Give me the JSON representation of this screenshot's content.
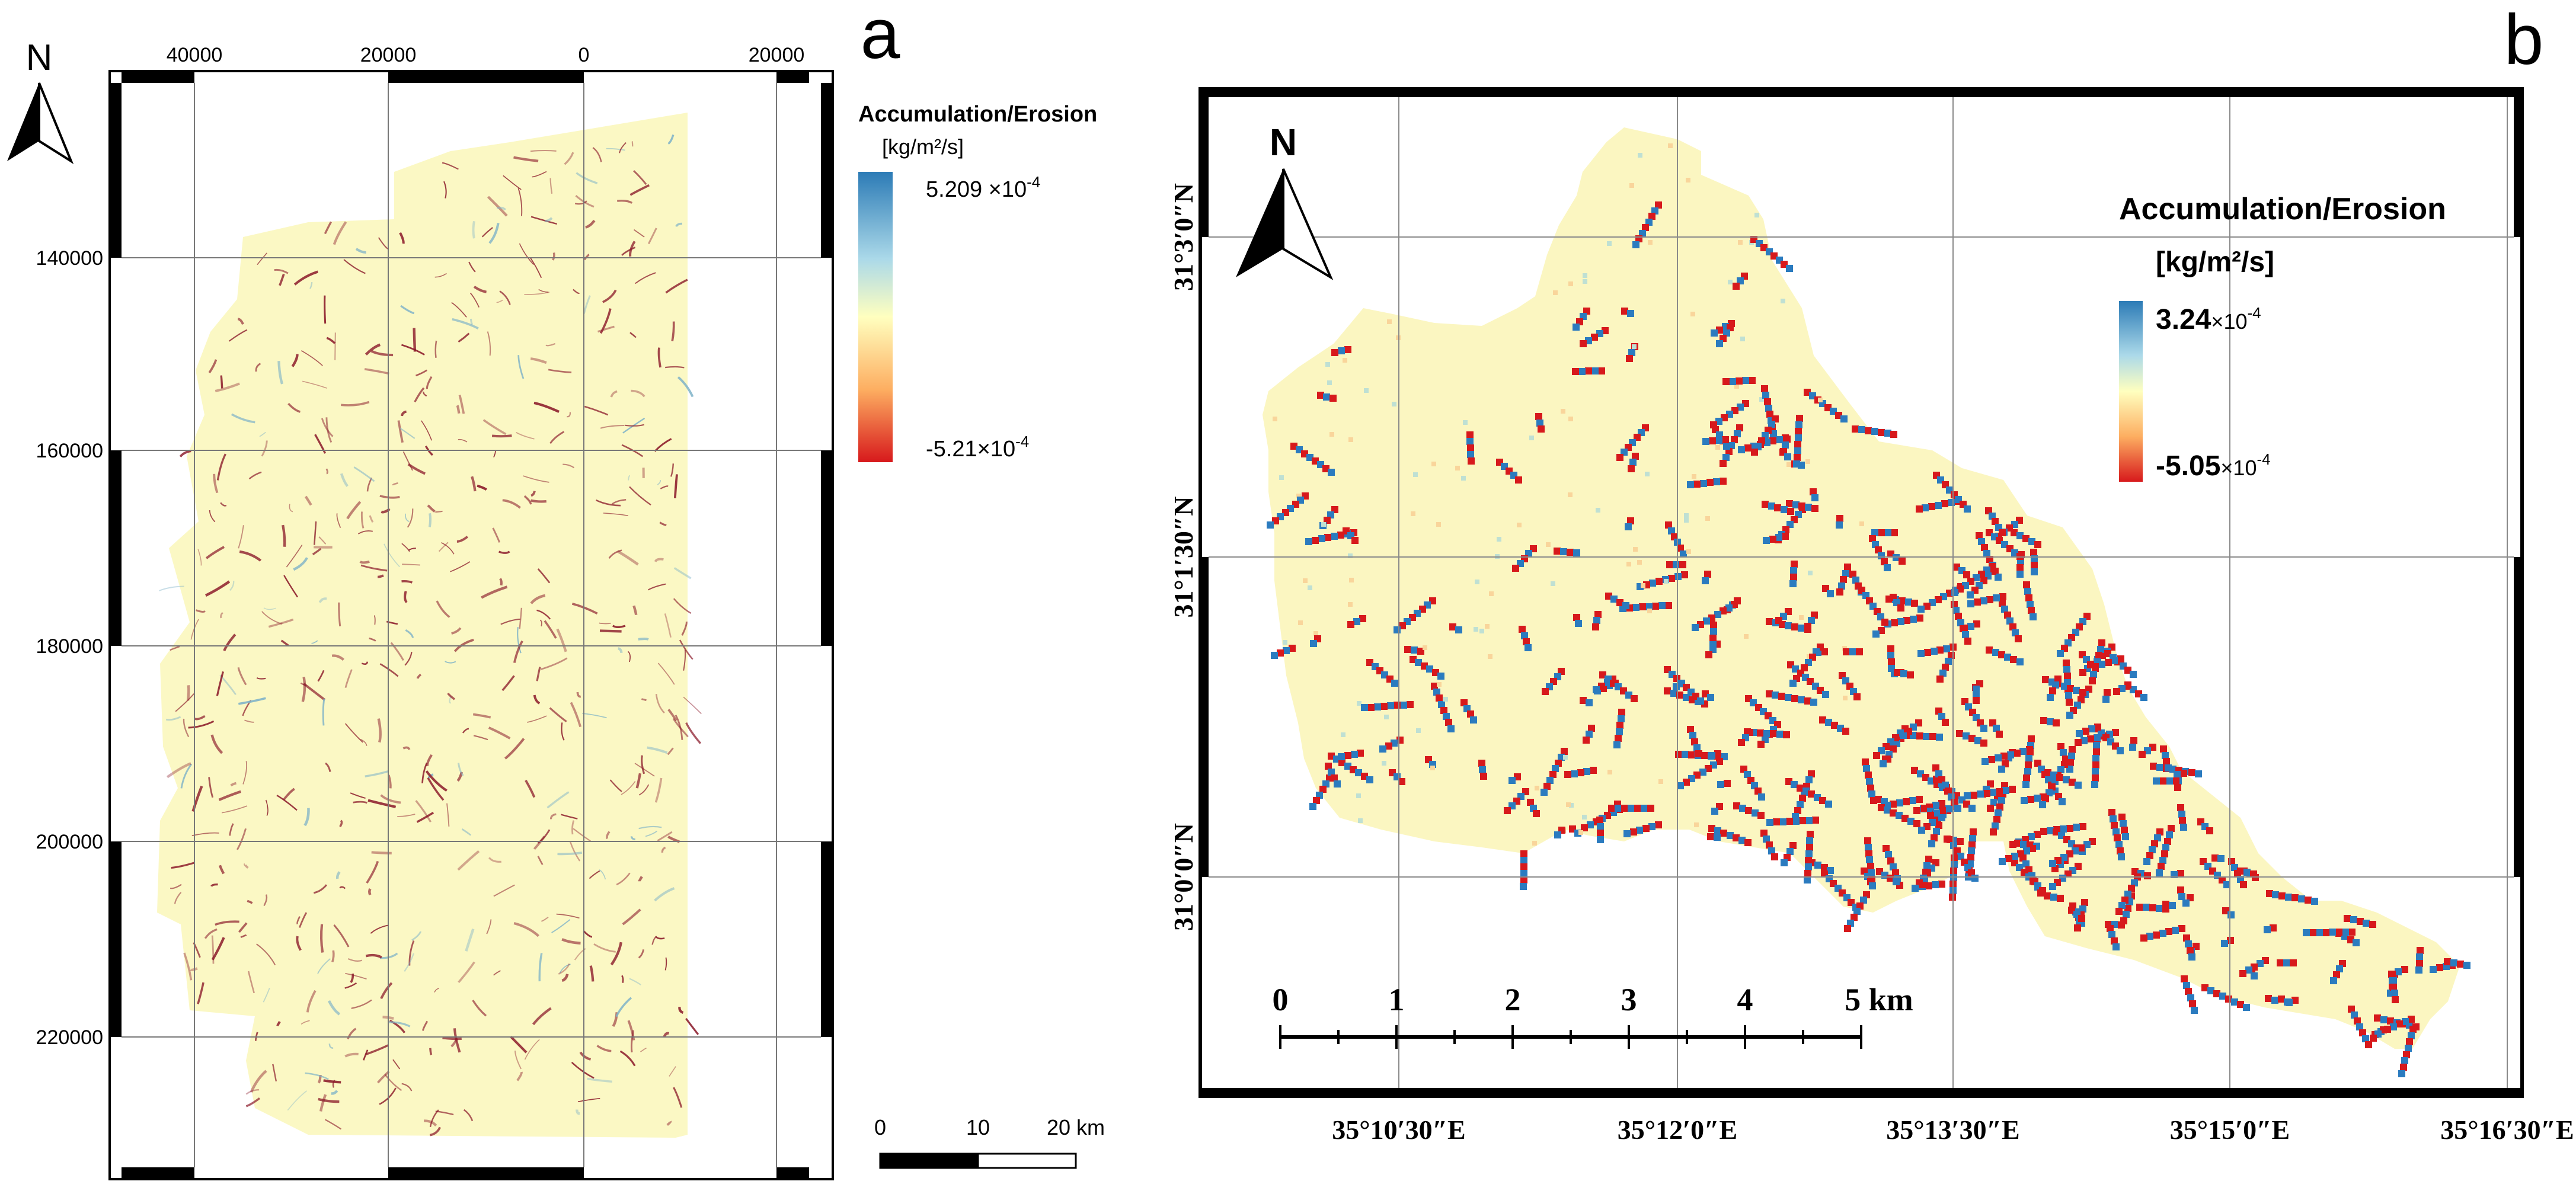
{
  "panel_a": {
    "letter": "a",
    "north_label": "N",
    "top_ticks": [
      "40000",
      "20000",
      "0",
      "20000"
    ],
    "left_ticks": [
      "140000",
      "160000",
      "180000",
      "200000",
      "220000"
    ],
    "legend": {
      "title": "Accumulation/Erosion",
      "units": "[kg/m²/s]",
      "max_mantissa": "5.209 ×10",
      "max_exp": "-4",
      "min_mantissa": "-5.21×10",
      "min_exp": "-4"
    },
    "scalebar": {
      "labels": [
        "0",
        "10",
        "20 km"
      ]
    },
    "colors": {
      "background": "#fbf8c4",
      "channel": "#8b1a2a",
      "frame": "#000000",
      "grid": "#777777"
    }
  },
  "panel_b": {
    "letter": "b",
    "north_label": "N",
    "lon_ticks": [
      "35°10′30″E",
      "35°12′0″E",
      "35°13′30″E",
      "35°15′0″E",
      "35°16′30″E"
    ],
    "lat_ticks": [
      "31°3′0″N",
      "31°1′30″N",
      "31°0′0″N"
    ],
    "legend": {
      "title": "Accumulation/Erosion",
      "units": "[kg/m²/s]",
      "max_mantissa": "3.24",
      "max_suffix": "×10",
      "max_exp": "-4",
      "min_mantissa": "-5.05",
      "min_suffix": "×10",
      "min_exp": "-4"
    },
    "scalebar": {
      "labels": [
        "0",
        "1",
        "2",
        "3",
        "4",
        "5 km"
      ]
    },
    "colors": {
      "background": "#fbf6c1",
      "accumulation": "#2b7bbf",
      "erosion": "#d7191c",
      "frame": "#000000",
      "grid": "#8a8a8a"
    }
  },
  "colorramp": [
    "#2c7bb6",
    "#abd9e9",
    "#ffffbf",
    "#fdae61",
    "#d7191c"
  ]
}
